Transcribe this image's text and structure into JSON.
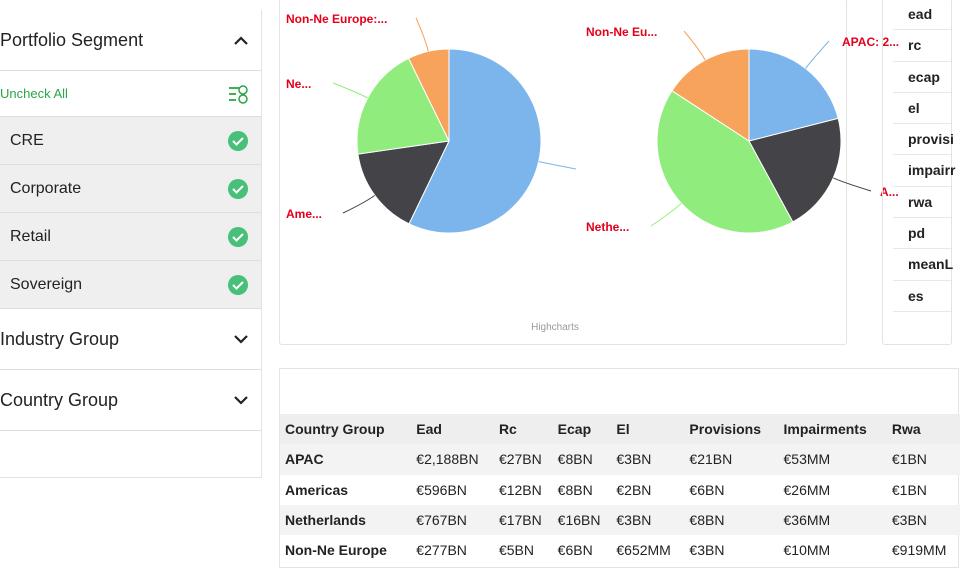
{
  "sidebar": {
    "sections": [
      {
        "title": "Portfolio Segment",
        "action": "Uncheck All",
        "items": [
          "CRE",
          "Corporate",
          "Retail",
          "Sovereign"
        ]
      },
      {
        "title": "Industry Group"
      },
      {
        "title": "Country Group"
      }
    ]
  },
  "pies": [
    {
      "slices": [
        {
          "label": null,
          "value": 2188
        },
        {
          "label": "Ame...",
          "value": 596
        },
        {
          "label": "Ne...",
          "value": 767
        },
        {
          "label": "Non-Ne Europe:...",
          "value": 277
        }
      ]
    },
    {
      "slices": [
        {
          "label": "APAC: 2...",
          "value": 8
        },
        {
          "label": "A...",
          "value": 8
        },
        {
          "label": "Nethe...",
          "value": 16
        },
        {
          "label": "Non-Ne Eu...",
          "value": 6
        }
      ]
    }
  ],
  "colors": [
    "#7cb5ec",
    "#434348",
    "#90ed7d",
    "#f7a35c"
  ],
  "credit": "Highcharts",
  "measures": [
    "ead",
    "rc",
    "ecap",
    "el",
    "provisi",
    "impairr",
    "rwa",
    "pd",
    "meanL",
    "es"
  ],
  "table": {
    "header": [
      "Country Group",
      "Ead",
      "Rc",
      "Ecap",
      "El",
      "Provisions",
      "Impairments",
      "Rwa"
    ],
    "rows": [
      [
        "APAC",
        "€2,188BN",
        "€27BN",
        "€8BN",
        "€3BN",
        "€21BN",
        "€53MM",
        "€1BN"
      ],
      [
        "Americas",
        "€596BN",
        "€12BN",
        "€8BN",
        "€2BN",
        "€6BN",
        "€26MM",
        "€1BN"
      ],
      [
        "Netherlands",
        "€767BN",
        "€17BN",
        "€16BN",
        "€3BN",
        "€8BN",
        "€36MM",
        "€3BN"
      ],
      [
        "Non-Ne Europe",
        "€277BN",
        "€5BN",
        "€6BN",
        "€652MM",
        "€3BN",
        "€10MM",
        "€919MM"
      ]
    ]
  }
}
